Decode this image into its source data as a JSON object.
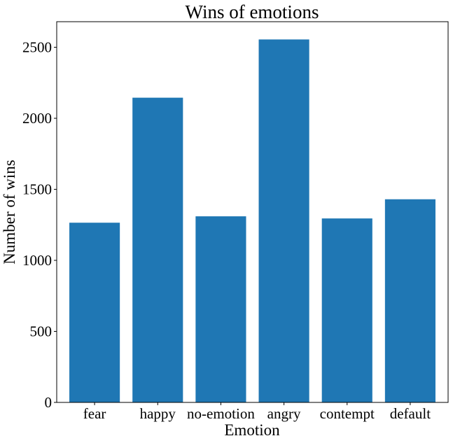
{
  "chart_data": {
    "type": "bar",
    "title": "Wins of emotions",
    "xlabel": "Emotion",
    "ylabel": "Number of wins",
    "categories": [
      "fear",
      "happy",
      "no-emotion",
      "angry",
      "contempt",
      "default"
    ],
    "values": [
      1265,
      2145,
      1310,
      2555,
      1295,
      1430
    ],
    "ylim": [
      0,
      2680
    ],
    "yticks": [
      0,
      500,
      1000,
      1500,
      2000,
      2500
    ],
    "grid": false,
    "bar_color": "#1f77b4"
  }
}
